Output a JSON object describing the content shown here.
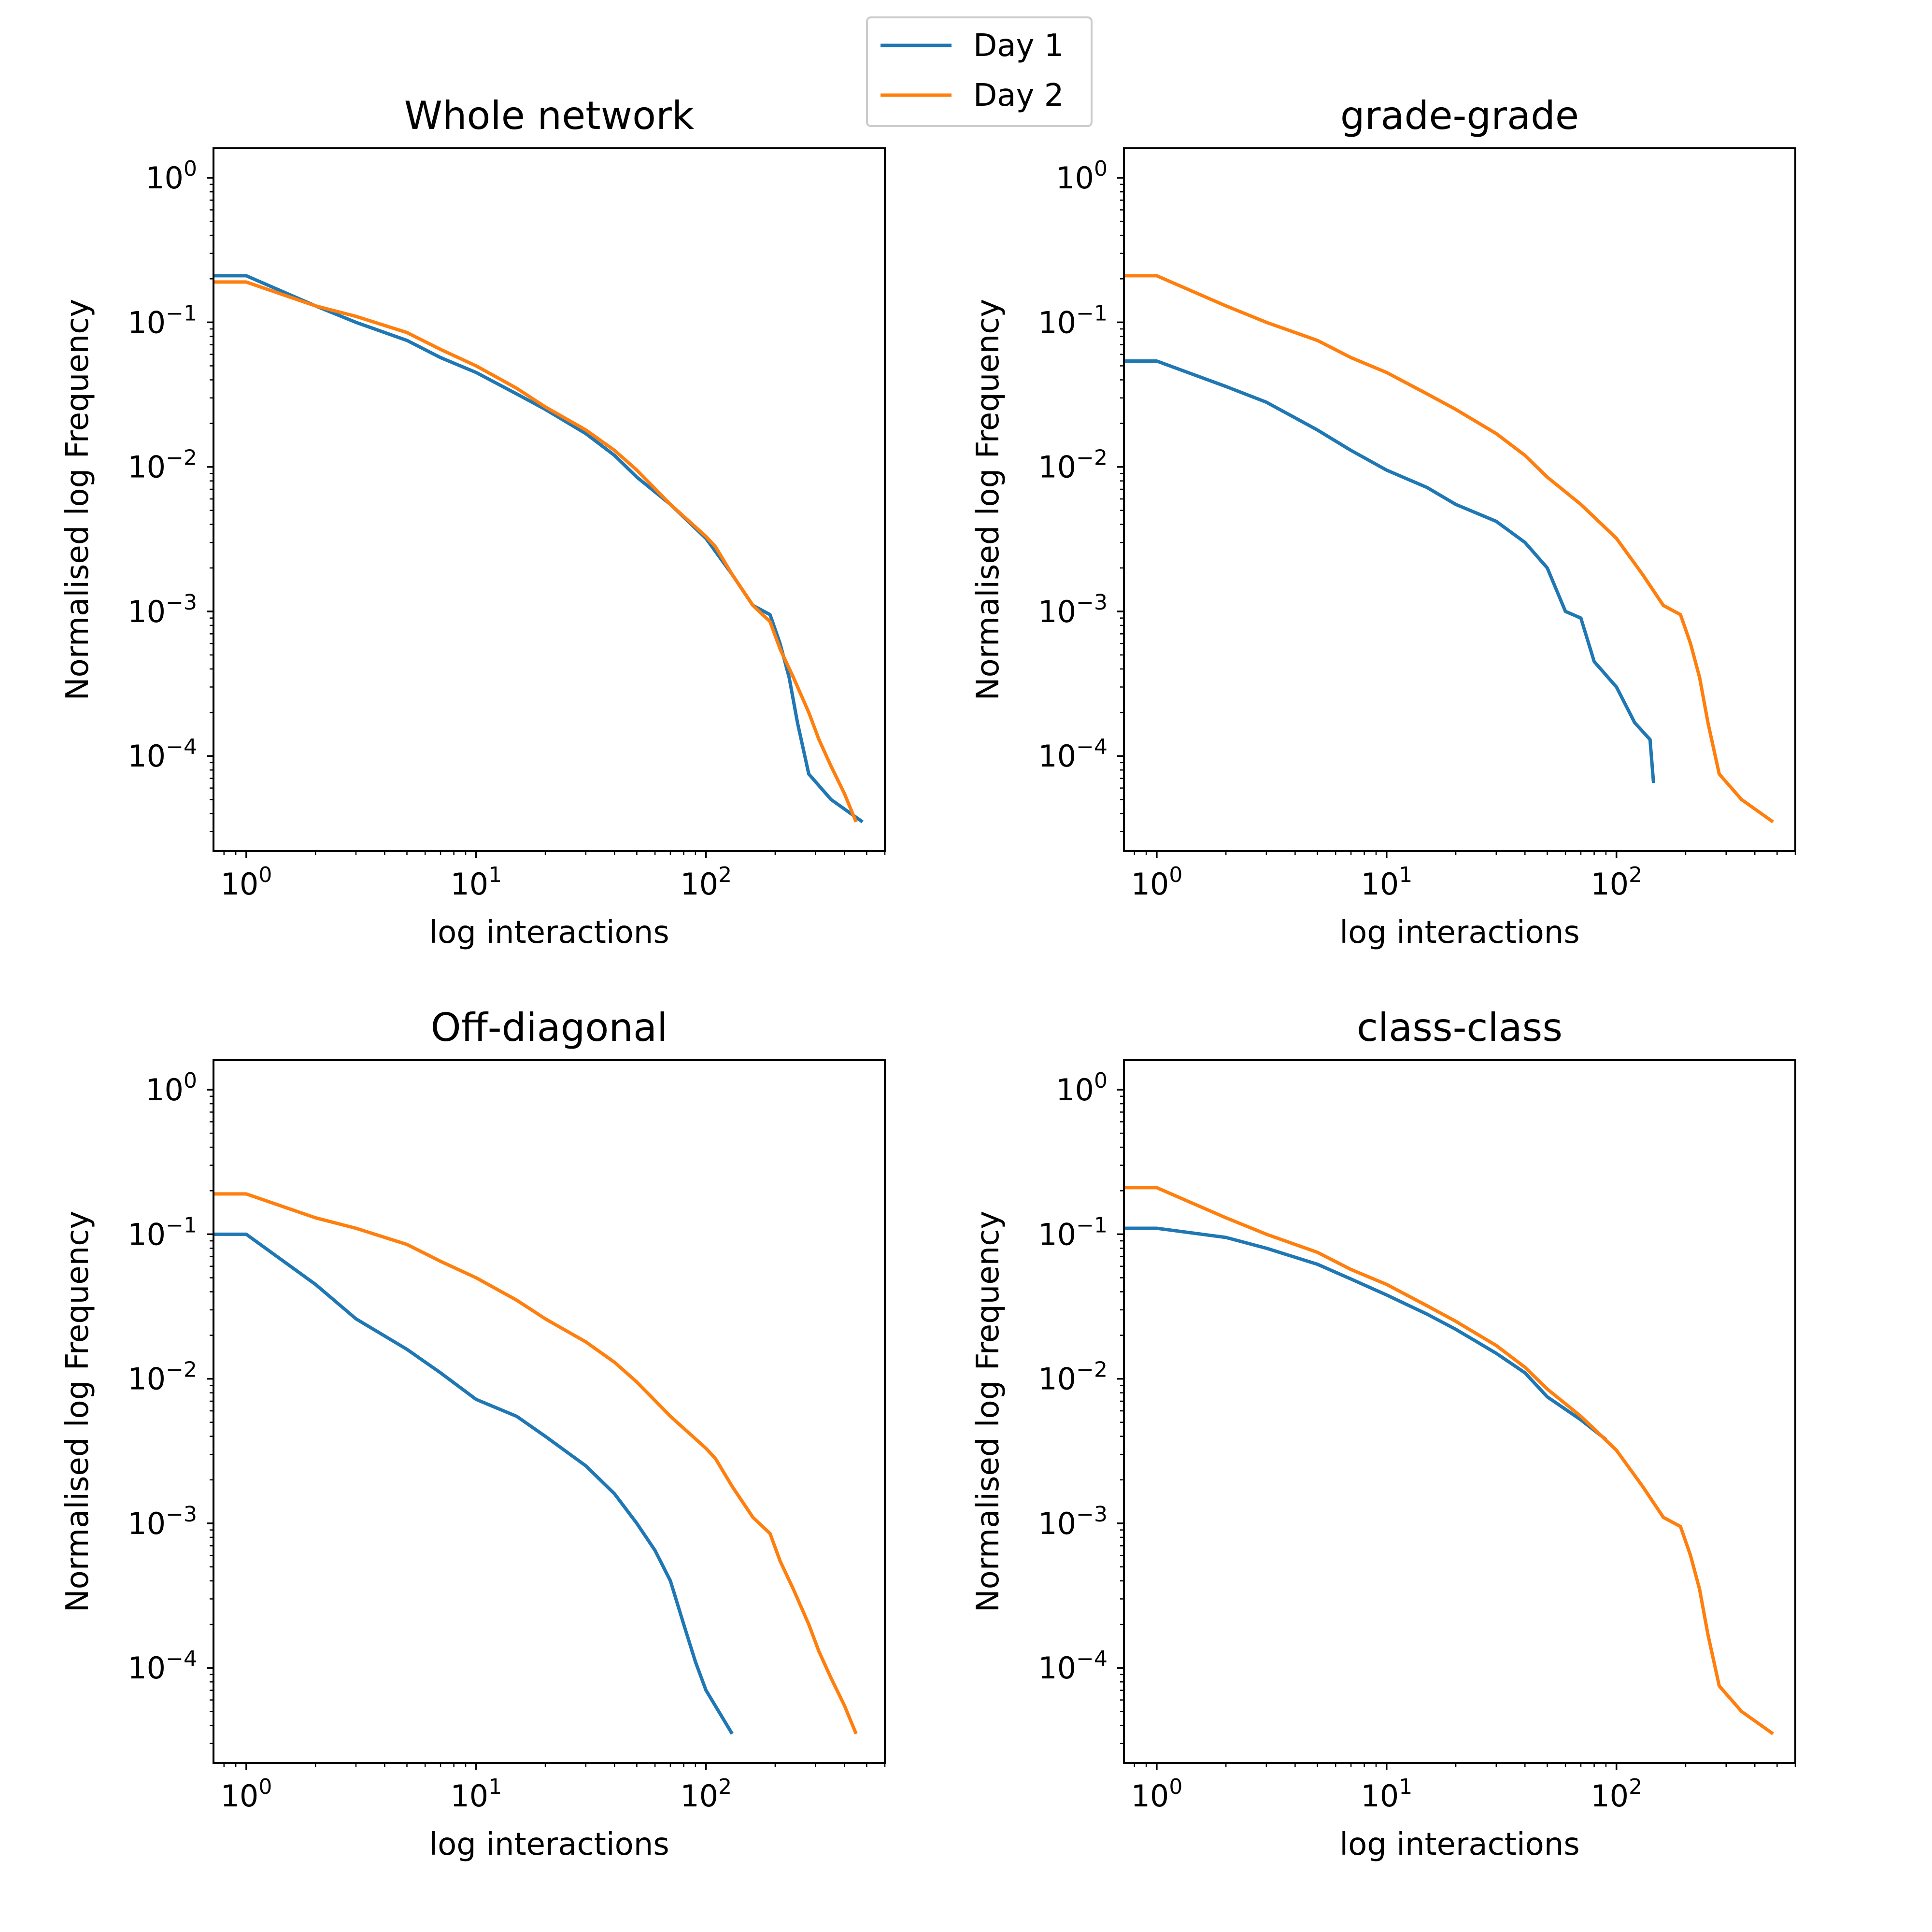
{
  "legend": {
    "entries": [
      {
        "label": "Day 1",
        "color": "#1f77b4"
      },
      {
        "label": "Day 2",
        "color": "#ff7f0e"
      }
    ]
  },
  "chart_data": [
    {
      "type": "line",
      "title": "Whole network",
      "xlabel": "log interactions",
      "ylabel": "Normalised log Frequency",
      "xscale": "log",
      "yscale": "log",
      "xlim": [
        0.72,
        600
      ],
      "ylim": [
        2.2e-05,
        1.6
      ],
      "xticks": [
        "10^0",
        "10^1",
        "10^2"
      ],
      "yticks": [
        "10^0",
        "10^-1",
        "10^-2",
        "10^-3",
        "10^-4"
      ],
      "series": [
        {
          "name": "Day 1",
          "color": "#1f77b4",
          "points": [
            [
              0.72,
              0.21
            ],
            [
              1,
              0.21
            ],
            [
              2,
              0.13
            ],
            [
              3,
              0.1
            ],
            [
              5,
              0.075
            ],
            [
              7,
              0.057
            ],
            [
              10,
              0.045
            ],
            [
              15,
              0.032
            ],
            [
              20,
              0.025
            ],
            [
              30,
              0.017
            ],
            [
              40,
              0.012
            ],
            [
              50,
              0.0085
            ],
            [
              70,
              0.0055
            ],
            [
              100,
              0.0032
            ],
            [
              130,
              0.0018
            ],
            [
              160,
              0.0011
            ],
            [
              190,
              0.00095
            ],
            [
              210,
              0.0006
            ],
            [
              230,
              0.00035
            ],
            [
              250,
              0.00017
            ],
            [
              280,
              7.5e-05
            ],
            [
              350,
              5e-05
            ],
            [
              480,
              3.5e-05
            ]
          ]
        },
        {
          "name": "Day 2",
          "color": "#ff7f0e",
          "points": [
            [
              0.72,
              0.19
            ],
            [
              1,
              0.19
            ],
            [
              2,
              0.13
            ],
            [
              3,
              0.11
            ],
            [
              5,
              0.085
            ],
            [
              7,
              0.065
            ],
            [
              10,
              0.05
            ],
            [
              15,
              0.035
            ],
            [
              20,
              0.026
            ],
            [
              30,
              0.018
            ],
            [
              40,
              0.013
            ],
            [
              50,
              0.0095
            ],
            [
              70,
              0.0055
            ],
            [
              100,
              0.0033
            ],
            [
              110,
              0.0028
            ],
            [
              130,
              0.0018
            ],
            [
              160,
              0.0011
            ],
            [
              190,
              0.00085
            ],
            [
              210,
              0.00055
            ],
            [
              240,
              0.00035
            ],
            [
              280,
              0.0002
            ],
            [
              310,
              0.00013
            ],
            [
              350,
              8.5e-05
            ],
            [
              400,
              5.5e-05
            ],
            [
              450,
              3.5e-05
            ]
          ]
        }
      ]
    },
    {
      "type": "line",
      "title": "grade-grade",
      "xlabel": "log interactions",
      "ylabel": "Normalised log Frequency",
      "xscale": "log",
      "yscale": "log",
      "xlim": [
        0.72,
        600
      ],
      "ylim": [
        2.2e-05,
        1.6
      ],
      "xticks": [
        "10^0",
        "10^1",
        "10^2"
      ],
      "yticks": [
        "10^0",
        "10^-1",
        "10^-2",
        "10^-3",
        "10^-4"
      ],
      "series": [
        {
          "name": "Day 1",
          "color": "#1f77b4",
          "points": [
            [
              0.72,
              0.054
            ],
            [
              1,
              0.054
            ],
            [
              2,
              0.036
            ],
            [
              3,
              0.028
            ],
            [
              5,
              0.018
            ],
            [
              7,
              0.013
            ],
            [
              10,
              0.0095
            ],
            [
              15,
              0.0072
            ],
            [
              20,
              0.0055
            ],
            [
              30,
              0.0042
            ],
            [
              40,
              0.003
            ],
            [
              50,
              0.002
            ],
            [
              60,
              0.001
            ],
            [
              70,
              0.0009
            ],
            [
              80,
              0.00045
            ],
            [
              100,
              0.0003
            ],
            [
              120,
              0.00017
            ],
            [
              140,
              0.00013
            ],
            [
              145,
              6.5e-05
            ]
          ]
        },
        {
          "name": "Day 2",
          "color": "#ff7f0e",
          "points": [
            [
              0.72,
              0.21
            ],
            [
              1,
              0.21
            ],
            [
              2,
              0.13
            ],
            [
              3,
              0.1
            ],
            [
              5,
              0.075
            ],
            [
              7,
              0.057
            ],
            [
              10,
              0.045
            ],
            [
              15,
              0.032
            ],
            [
              20,
              0.025
            ],
            [
              30,
              0.017
            ],
            [
              40,
              0.012
            ],
            [
              50,
              0.0085
            ],
            [
              70,
              0.0055
            ],
            [
              100,
              0.0032
            ],
            [
              130,
              0.0018
            ],
            [
              160,
              0.0011
            ],
            [
              190,
              0.00095
            ],
            [
              210,
              0.0006
            ],
            [
              230,
              0.00035
            ],
            [
              250,
              0.00017
            ],
            [
              280,
              7.5e-05
            ],
            [
              350,
              5e-05
            ],
            [
              480,
              3.5e-05
            ]
          ]
        }
      ]
    },
    {
      "type": "line",
      "title": "Off-diagonal",
      "xlabel": "log interactions",
      "ylabel": "Normalised log Frequency",
      "xscale": "log",
      "yscale": "log",
      "xlim": [
        0.72,
        600
      ],
      "ylim": [
        2.2e-05,
        1.6
      ],
      "xticks": [
        "10^0",
        "10^1",
        "10^2"
      ],
      "yticks": [
        "10^0",
        "10^-1",
        "10^-2",
        "10^-3",
        "10^-4"
      ],
      "series": [
        {
          "name": "Day 1",
          "color": "#1f77b4",
          "points": [
            [
              0.72,
              0.1
            ],
            [
              1,
              0.1
            ],
            [
              2,
              0.045
            ],
            [
              3,
              0.026
            ],
            [
              5,
              0.016
            ],
            [
              7,
              0.011
            ],
            [
              10,
              0.0072
            ],
            [
              15,
              0.0055
            ],
            [
              20,
              0.004
            ],
            [
              30,
              0.0025
            ],
            [
              40,
              0.0016
            ],
            [
              50,
              0.001
            ],
            [
              60,
              0.00065
            ],
            [
              70,
              0.0004
            ],
            [
              80,
              0.0002
            ],
            [
              90,
              0.00011
            ],
            [
              100,
              7e-05
            ],
            [
              130,
              3.5e-05
            ]
          ]
        },
        {
          "name": "Day 2",
          "color": "#ff7f0e",
          "points": [
            [
              0.72,
              0.19
            ],
            [
              1,
              0.19
            ],
            [
              2,
              0.13
            ],
            [
              3,
              0.11
            ],
            [
              5,
              0.085
            ],
            [
              7,
              0.065
            ],
            [
              10,
              0.05
            ],
            [
              15,
              0.035
            ],
            [
              20,
              0.026
            ],
            [
              30,
              0.018
            ],
            [
              40,
              0.013
            ],
            [
              50,
              0.0095
            ],
            [
              70,
              0.0055
            ],
            [
              100,
              0.0033
            ],
            [
              110,
              0.0028
            ],
            [
              130,
              0.0018
            ],
            [
              160,
              0.0011
            ],
            [
              190,
              0.00085
            ],
            [
              210,
              0.00055
            ],
            [
              240,
              0.00035
            ],
            [
              280,
              0.0002
            ],
            [
              310,
              0.00013
            ],
            [
              350,
              8.5e-05
            ],
            [
              400,
              5.5e-05
            ],
            [
              450,
              3.5e-05
            ]
          ]
        }
      ]
    },
    {
      "type": "line",
      "title": "class-class",
      "xlabel": "log interactions",
      "ylabel": "Normalised log Frequency",
      "xscale": "log",
      "yscale": "log",
      "xlim": [
        0.72,
        600
      ],
      "ylim": [
        2.2e-05,
        1.6
      ],
      "xticks": [
        "10^0",
        "10^1",
        "10^2"
      ],
      "yticks": [
        "10^0",
        "10^-1",
        "10^-2",
        "10^-3",
        "10^-4"
      ],
      "series": [
        {
          "name": "Day 1",
          "color": "#1f77b4",
          "points": [
            [
              0.72,
              0.11
            ],
            [
              1,
              0.11
            ],
            [
              2,
              0.095
            ],
            [
              3,
              0.08
            ],
            [
              5,
              0.062
            ],
            [
              7,
              0.049
            ],
            [
              10,
              0.038
            ],
            [
              15,
              0.028
            ],
            [
              20,
              0.022
            ],
            [
              30,
              0.015
            ],
            [
              40,
              0.011
            ],
            [
              50,
              0.0075
            ],
            [
              70,
              0.0052
            ],
            [
              90,
              0.0038
            ]
          ]
        },
        {
          "name": "Day 2",
          "color": "#ff7f0e",
          "points": [
            [
              0.72,
              0.21
            ],
            [
              1,
              0.21
            ],
            [
              2,
              0.13
            ],
            [
              3,
              0.1
            ],
            [
              5,
              0.075
            ],
            [
              7,
              0.057
            ],
            [
              10,
              0.045
            ],
            [
              15,
              0.032
            ],
            [
              20,
              0.025
            ],
            [
              30,
              0.017
            ],
            [
              40,
              0.012
            ],
            [
              50,
              0.0085
            ],
            [
              70,
              0.0055
            ],
            [
              100,
              0.0032
            ],
            [
              130,
              0.0018
            ],
            [
              160,
              0.0011
            ],
            [
              190,
              0.00095
            ],
            [
              210,
              0.0006
            ],
            [
              230,
              0.00035
            ],
            [
              250,
              0.00017
            ],
            [
              280,
              7.5e-05
            ],
            [
              350,
              5e-05
            ],
            [
              480,
              3.5e-05
            ]
          ]
        }
      ]
    }
  ]
}
